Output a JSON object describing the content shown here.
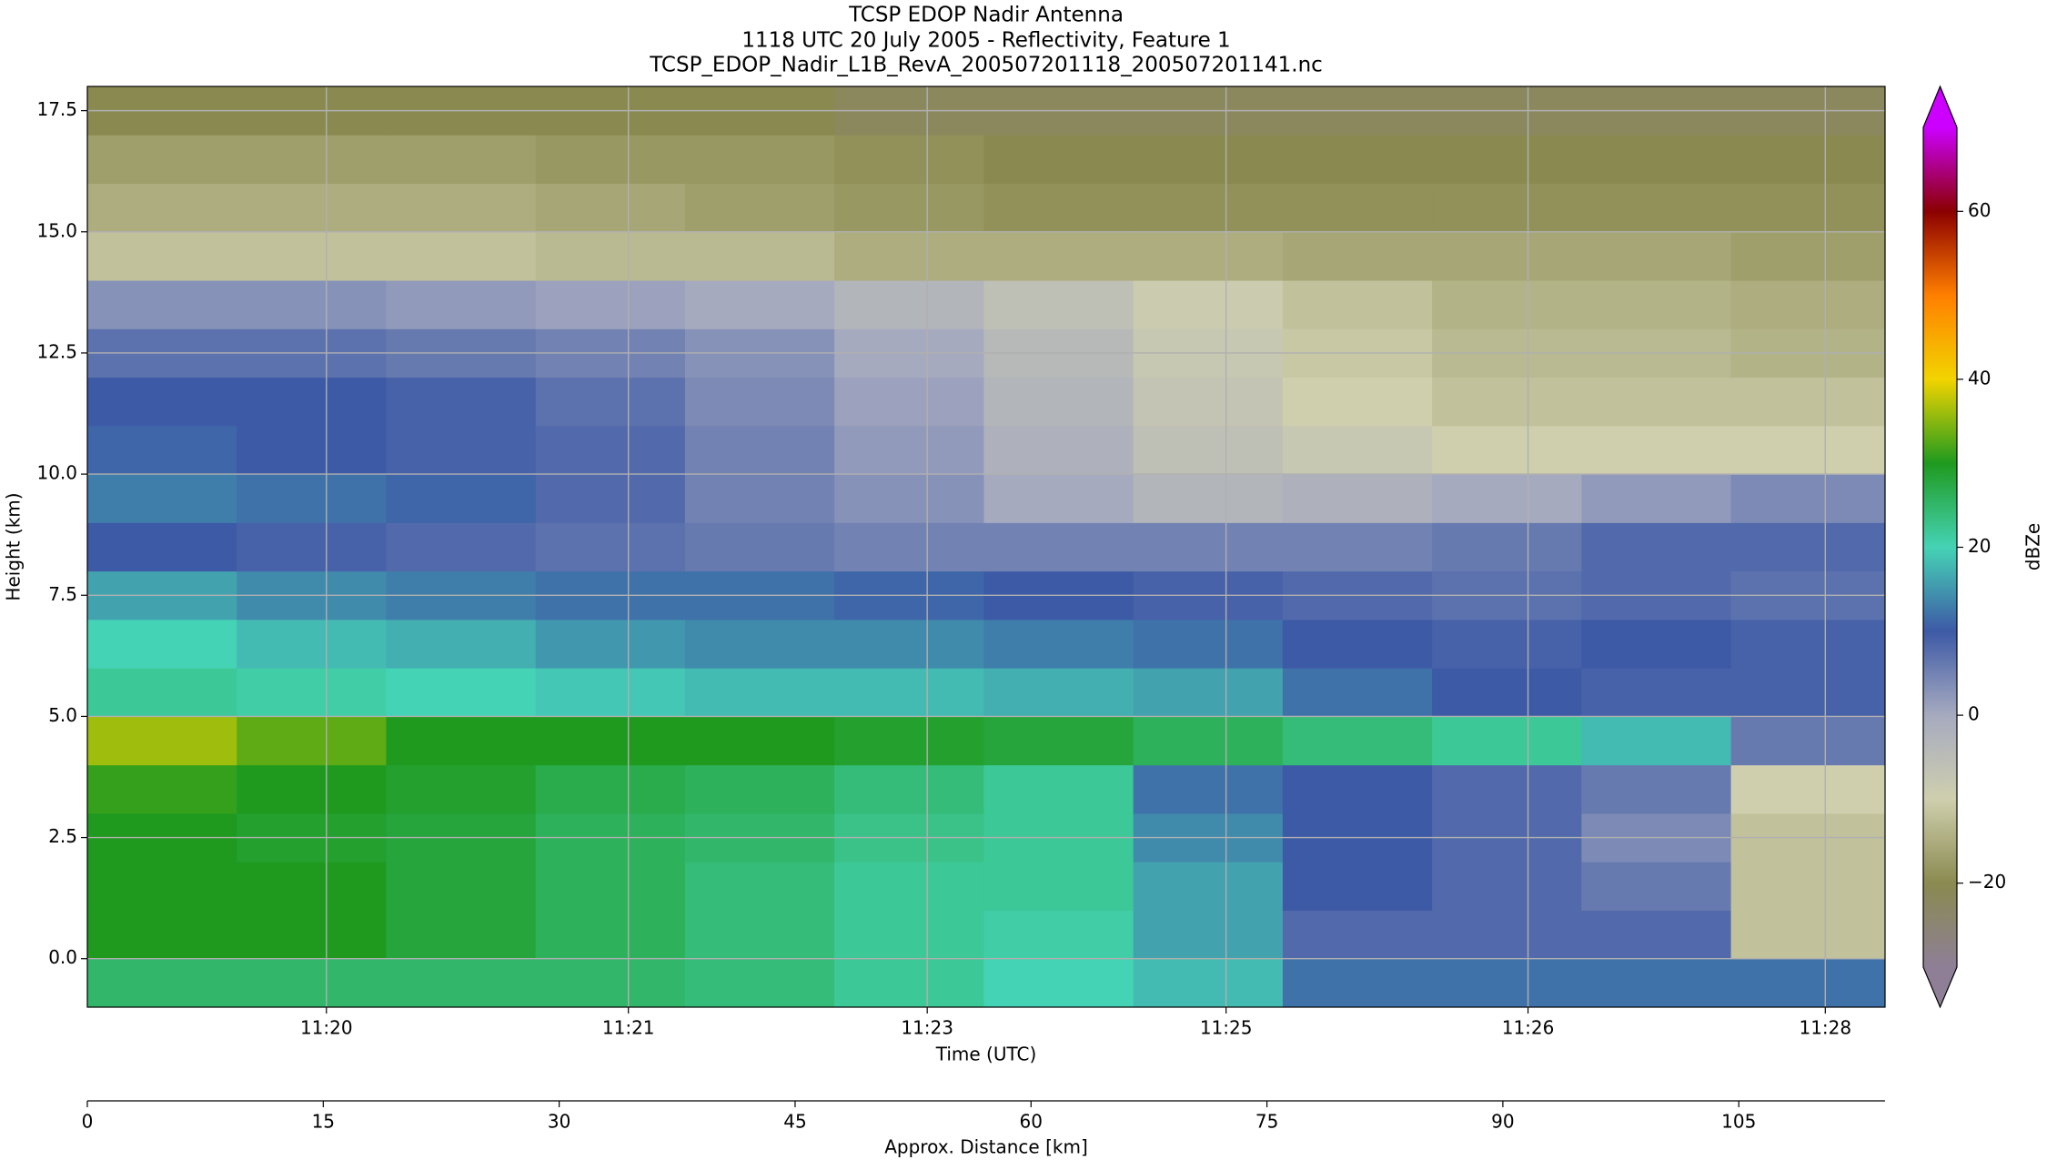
{
  "chart_data": {
    "type": "heatmap",
    "title_lines": [
      "TCSP EDOP Nadir Antenna",
      "1118 UTC 20 July 2005 - Reflectivity, Feature 1",
      "TCSP_EDOP_Nadir_L1B_RevA_200507201118_200507201141.nc"
    ],
    "x_label": "Time (UTC)",
    "time_ticks": [
      {
        "value": 15.2,
        "label": "11:20"
      },
      {
        "value": 34.4,
        "label": "11:21"
      },
      {
        "value": 53.4,
        "label": "11:23"
      },
      {
        "value": 72.4,
        "label": "11:25"
      },
      {
        "value": 91.6,
        "label": "11:26"
      },
      {
        "value": 110.5,
        "label": "11:28"
      }
    ],
    "x2_label": "Approx. Distance [km]",
    "xlim": [
      0,
      114.3
    ],
    "xticks": [
      0,
      15,
      30,
      45,
      60,
      75,
      90,
      105
    ],
    "y_label": "Height (km)",
    "ylim": [
      -1,
      18
    ],
    "yticks": [
      {
        "value": 0,
        "label": "0.0"
      },
      2.5,
      {
        "value": 5,
        "label": "5.0"
      },
      7.5,
      {
        "value": 10,
        "label": "10.0"
      },
      12.5,
      {
        "value": 15,
        "label": "15.0"
      },
      17.5
    ],
    "grid": true,
    "x": [
      4.75,
      14.25,
      23.75,
      33.25,
      42.75,
      52.25,
      61.75,
      71.25,
      80.75,
      90.25,
      99.75,
      109.25
    ],
    "y": [
      -0.5,
      0.5,
      1.5,
      2.5,
      3.5,
      4.5,
      5.5,
      6.5,
      7.5,
      8.5,
      9.5,
      10.5,
      11.5,
      12.5,
      13.5,
      14.5,
      15.5,
      16.5,
      17.5
    ],
    "z": [
      [
        25,
        25,
        25,
        25,
        24,
        22,
        20,
        18,
        12,
        12,
        12,
        12
      ],
      [
        30,
        30,
        28,
        26,
        24,
        22,
        21,
        16,
        8,
        8,
        8,
        -12
      ],
      [
        30,
        30,
        28,
        26,
        24,
        22,
        22,
        16,
        10,
        8,
        6,
        -12
      ],
      [
        30,
        29,
        28,
        26,
        25,
        23,
        22,
        14,
        10,
        8,
        4,
        -12
      ],
      [
        31,
        30,
        29,
        27,
        26,
        24,
        22,
        12,
        10,
        8,
        6,
        -10
      ],
      [
        36,
        33,
        30,
        30,
        30,
        29,
        28,
        26,
        24,
        22,
        18,
        6
      ],
      [
        22,
        21,
        20,
        19,
        18,
        18,
        17,
        16,
        12,
        10,
        9,
        9
      ],
      [
        20,
        18,
        17,
        15,
        14,
        14,
        13,
        12,
        10,
        9,
        10,
        9
      ],
      [
        16,
        14,
        13,
        12,
        12,
        11,
        10,
        9,
        8,
        7,
        8,
        7
      ],
      [
        10,
        9,
        8,
        7,
        6,
        5,
        5,
        5,
        5,
        6,
        8,
        8
      ],
      [
        13,
        12,
        11,
        8,
        5,
        3,
        0,
        -3,
        -2,
        0,
        2,
        4
      ],
      [
        11,
        10,
        9,
        8,
        5,
        2,
        -2,
        -6,
        -8,
        -10,
        -10,
        -10
      ],
      [
        10,
        10,
        9,
        7,
        4,
        1,
        -3,
        -7,
        -10,
        -12,
        -12,
        -12
      ],
      [
        7,
        7,
        6,
        5,
        3,
        0,
        -4,
        -8,
        -11,
        -13,
        -13,
        -14
      ],
      [
        3,
        3,
        2,
        1,
        0,
        -3,
        -6,
        -9,
        -12,
        -14,
        -14,
        -15
      ],
      [
        -12,
        -12,
        -12,
        -13,
        -13,
        -15,
        -15,
        -15,
        -16,
        -16,
        -16,
        -17
      ],
      [
        -15,
        -15,
        -15,
        -16,
        -17,
        -18,
        -19,
        -19,
        -19,
        -19,
        -19,
        -19
      ],
      [
        -17,
        -17,
        -17,
        -18,
        -18,
        -19,
        -20,
        -20,
        -20,
        -20,
        -20,
        -20
      ],
      [
        -20,
        -20,
        -20,
        -20,
        -20,
        -22,
        -22,
        -22,
        -22,
        -22,
        -22,
        -22
      ]
    ],
    "colorbar_label": "dBZe",
    "clim": [
      -30,
      70
    ],
    "cticks": [
      {
        "value": -20,
        "label": "−20"
      },
      0,
      20,
      40,
      60
    ],
    "colorscale": [
      "#8e7f96",
      "#8a8a50",
      "#cfcfae",
      "#a6aabf",
      "#3d5aa6",
      "#45d3b5",
      "#1f9a1f",
      "#f2d400",
      "#ff7f00",
      "#8b0000",
      "#cc00ff"
    ]
  }
}
